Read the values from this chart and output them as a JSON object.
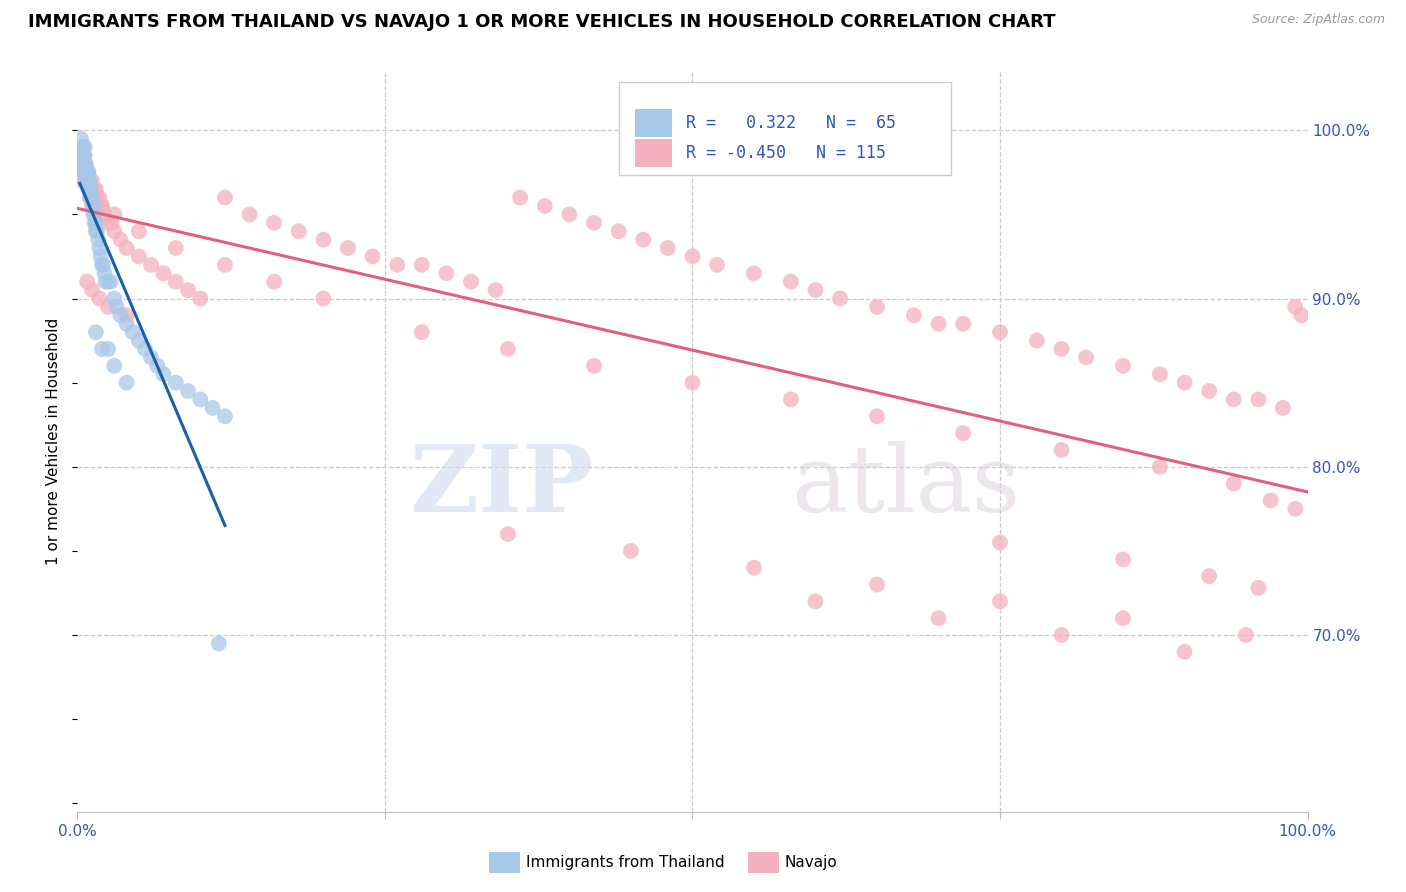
{
  "title": "IMMIGRANTS FROM THAILAND VS NAVAJO 1 OR MORE VEHICLES IN HOUSEHOLD CORRELATION CHART",
  "source": "Source: ZipAtlas.com",
  "ylabel": "1 or more Vehicles in Household",
  "ytick_labels": [
    "70.0%",
    "80.0%",
    "90.0%",
    "100.0%"
  ],
  "ytick_values": [
    0.7,
    0.8,
    0.9,
    1.0
  ],
  "xlim": [
    0.0,
    1.0
  ],
  "ylim": [
    0.595,
    1.035
  ],
  "blue_color": "#a8c8e8",
  "pink_color": "#f4b0c0",
  "blue_line_color": "#1a5fa8",
  "pink_line_color": "#e06080",
  "watermark_zip": "ZIP",
  "watermark_atlas": "atlas",
  "grid_color": "#cccccc",
  "axis_color": "#3355bb",
  "title_fontsize": 13,
  "tick_fontsize": 11,
  "ylabel_fontsize": 11,
  "blue_scatter_x": [
    0.002,
    0.003,
    0.003,
    0.004,
    0.004,
    0.005,
    0.005,
    0.005,
    0.005,
    0.006,
    0.006,
    0.006,
    0.006,
    0.007,
    0.007,
    0.007,
    0.008,
    0.008,
    0.009,
    0.009,
    0.009,
    0.01,
    0.01,
    0.01,
    0.011,
    0.011,
    0.012,
    0.012,
    0.013,
    0.013,
    0.014,
    0.014,
    0.015,
    0.015,
    0.016,
    0.017,
    0.018,
    0.019,
    0.02,
    0.021,
    0.022,
    0.023,
    0.025,
    0.027,
    0.03,
    0.032,
    0.035,
    0.04,
    0.045,
    0.05,
    0.055,
    0.06,
    0.065,
    0.07,
    0.08,
    0.09,
    0.1,
    0.11,
    0.12,
    0.015,
    0.02,
    0.025,
    0.03,
    0.04,
    0.115
  ],
  "blue_scatter_y": [
    0.985,
    0.99,
    0.995,
    0.985,
    0.98,
    0.99,
    0.985,
    0.98,
    0.975,
    0.99,
    0.985,
    0.98,
    0.975,
    0.98,
    0.975,
    0.97,
    0.975,
    0.97,
    0.975,
    0.97,
    0.965,
    0.97,
    0.965,
    0.96,
    0.965,
    0.96,
    0.96,
    0.955,
    0.955,
    0.95,
    0.95,
    0.945,
    0.945,
    0.94,
    0.94,
    0.935,
    0.93,
    0.925,
    0.92,
    0.92,
    0.915,
    0.91,
    0.91,
    0.91,
    0.9,
    0.895,
    0.89,
    0.885,
    0.88,
    0.875,
    0.87,
    0.865,
    0.86,
    0.855,
    0.85,
    0.845,
    0.84,
    0.835,
    0.83,
    0.88,
    0.87,
    0.87,
    0.86,
    0.85,
    0.695
  ],
  "pink_scatter_x": [
    0.002,
    0.003,
    0.004,
    0.005,
    0.006,
    0.007,
    0.008,
    0.009,
    0.01,
    0.011,
    0.012,
    0.013,
    0.014,
    0.015,
    0.016,
    0.017,
    0.018,
    0.02,
    0.022,
    0.025,
    0.028,
    0.03,
    0.035,
    0.04,
    0.05,
    0.06,
    0.07,
    0.08,
    0.09,
    0.1,
    0.12,
    0.14,
    0.16,
    0.18,
    0.2,
    0.22,
    0.24,
    0.26,
    0.28,
    0.3,
    0.32,
    0.34,
    0.36,
    0.38,
    0.4,
    0.42,
    0.44,
    0.46,
    0.48,
    0.5,
    0.52,
    0.55,
    0.58,
    0.6,
    0.62,
    0.65,
    0.68,
    0.7,
    0.72,
    0.75,
    0.78,
    0.8,
    0.82,
    0.85,
    0.88,
    0.9,
    0.92,
    0.94,
    0.96,
    0.98,
    0.99,
    0.995,
    0.003,
    0.006,
    0.01,
    0.015,
    0.02,
    0.03,
    0.05,
    0.08,
    0.12,
    0.16,
    0.2,
    0.28,
    0.35,
    0.42,
    0.5,
    0.58,
    0.65,
    0.72,
    0.8,
    0.88,
    0.94,
    0.97,
    0.99,
    0.008,
    0.012,
    0.018,
    0.025,
    0.04,
    0.35,
    0.45,
    0.55,
    0.65,
    0.75,
    0.85,
    0.95,
    0.6,
    0.7,
    0.8,
    0.9,
    0.75,
    0.85,
    0.92,
    0.96
  ],
  "pink_scatter_y": [
    0.98,
    0.975,
    0.97,
    0.985,
    0.98,
    0.975,
    0.97,
    0.975,
    0.97,
    0.965,
    0.97,
    0.965,
    0.96,
    0.965,
    0.96,
    0.955,
    0.96,
    0.955,
    0.95,
    0.945,
    0.945,
    0.94,
    0.935,
    0.93,
    0.925,
    0.92,
    0.915,
    0.91,
    0.905,
    0.9,
    0.96,
    0.95,
    0.945,
    0.94,
    0.935,
    0.93,
    0.925,
    0.92,
    0.92,
    0.915,
    0.91,
    0.905,
    0.96,
    0.955,
    0.95,
    0.945,
    0.94,
    0.935,
    0.93,
    0.925,
    0.92,
    0.915,
    0.91,
    0.905,
    0.9,
    0.895,
    0.89,
    0.885,
    0.885,
    0.88,
    0.875,
    0.87,
    0.865,
    0.86,
    0.855,
    0.85,
    0.845,
    0.84,
    0.84,
    0.835,
    0.895,
    0.89,
    0.975,
    0.97,
    0.965,
    0.96,
    0.955,
    0.95,
    0.94,
    0.93,
    0.92,
    0.91,
    0.9,
    0.88,
    0.87,
    0.86,
    0.85,
    0.84,
    0.83,
    0.82,
    0.81,
    0.8,
    0.79,
    0.78,
    0.775,
    0.91,
    0.905,
    0.9,
    0.895,
    0.89,
    0.76,
    0.75,
    0.74,
    0.73,
    0.72,
    0.71,
    0.7,
    0.72,
    0.71,
    0.7,
    0.69,
    0.755,
    0.745,
    0.735,
    0.728
  ]
}
